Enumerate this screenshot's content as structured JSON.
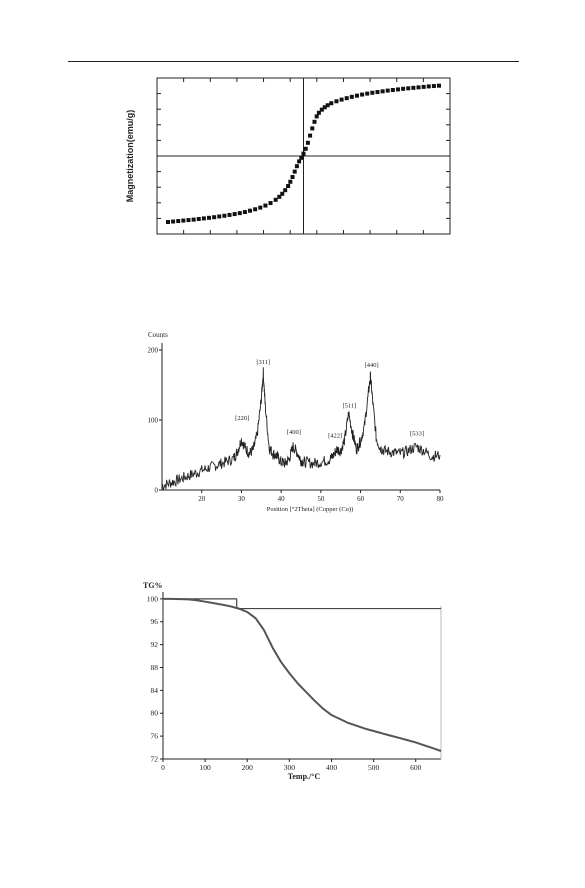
{
  "chart_data": [
    {
      "type": "scatter",
      "ylabel": "Magnetization(emu/g)",
      "xlabel": "",
      "xlim": [
        -20,
        20
      ],
      "ylim": [
        -65,
        65
      ],
      "grid": false,
      "series": [
        {
          "x": [
            -18.5,
            -17.8,
            -17.1,
            -16.4,
            -15.7,
            -15.0,
            -14.3,
            -13.6,
            -12.9,
            -12.2,
            -11.5,
            -10.8,
            -10.1,
            -9.4,
            -8.7,
            -8.0,
            -7.3,
            -6.6,
            -5.9,
            -5.2,
            -4.5,
            -3.8,
            -3.3,
            -2.9,
            -2.5,
            -2.1,
            -1.8,
            -1.5,
            -1.2,
            -0.9,
            -0.6,
            -0.3,
            0.0,
            0.3,
            0.6,
            0.9,
            1.2,
            1.5,
            1.8,
            2.1,
            2.5,
            2.9,
            3.3,
            3.8,
            4.5,
            5.2,
            5.9,
            6.6,
            7.3,
            8.0,
            8.7,
            9.4,
            10.1,
            10.8,
            11.5,
            12.2,
            12.9,
            13.6,
            14.3,
            15.0,
            15.7,
            16.4,
            17.1,
            17.8,
            18.5
          ],
          "y": [
            -55,
            -54.6,
            -54.2,
            -53.8,
            -53.4,
            -53.0,
            -52.5,
            -52.0,
            -51.5,
            -51.0,
            -50.4,
            -49.8,
            -49.1,
            -48.4,
            -47.6,
            -46.7,
            -45.6,
            -44.4,
            -43.0,
            -41.3,
            -39.2,
            -36.5,
            -34.0,
            -31.5,
            -28.5,
            -25.0,
            -21.5,
            -17.5,
            -13.0,
            -8.5,
            -4.5,
            -1.5,
            2.0,
            6.0,
            11.0,
            17.0,
            23.0,
            28.5,
            33.0,
            36.0,
            38.6,
            40.6,
            42.3,
            44.0,
            45.6,
            47.0,
            48.2,
            49.3,
            50.3,
            51.2,
            52.0,
            52.7,
            53.3,
            53.9,
            54.5,
            55.0,
            55.5,
            56.0,
            56.4,
            56.8,
            57.2,
            57.6,
            58.0,
            58.3,
            58.6
          ]
        }
      ]
    },
    {
      "type": "line",
      "title": "Counts",
      "xlabel": "Position [°2Theta] (Copper (Cu))",
      "ylabel": "",
      "xlim": [
        10,
        80
      ],
      "ylim": [
        0,
        210
      ],
      "xticks": [
        "20",
        "30",
        "40",
        "50",
        "60",
        "70",
        "80"
      ],
      "yticks": [
        "0",
        "100",
        "200"
      ],
      "peaks": [
        {
          "label": "[220]",
          "x": 30.2
        },
        {
          "label": "[311]",
          "x": 35.5
        },
        {
          "label": "[400]",
          "x": 43.2
        },
        {
          "label": "[422]",
          "x": 53.6
        },
        {
          "label": "[511]",
          "x": 57.2
        },
        {
          "label": "[440]",
          "x": 62.8
        },
        {
          "label": "[533]",
          "x": 74.2
        }
      ],
      "series": [
        {
          "x": [
            10,
            12,
            14,
            16,
            18,
            20,
            22,
            24,
            26,
            28,
            29,
            30,
            31,
            32,
            33,
            34,
            35,
            35.5,
            36,
            37,
            38,
            39,
            40,
            41,
            42,
            43,
            44,
            45,
            46,
            48,
            50,
            52,
            53,
            54,
            55,
            56,
            57,
            58,
            59,
            60,
            61,
            62,
            62.5,
            63,
            64,
            65,
            66,
            68,
            70,
            72,
            74,
            76,
            78,
            80
          ],
          "y": [
            6,
            10,
            14,
            19,
            23,
            28,
            32,
            36,
            40,
            45,
            55,
            72,
            60,
            52,
            58,
            80,
            130,
            168,
            120,
            60,
            52,
            48,
            40,
            38,
            44,
            62,
            54,
            42,
            40,
            38,
            40,
            43,
            48,
            58,
            56,
            72,
            110,
            80,
            58,
            70,
            92,
            140,
            162,
            130,
            72,
            60,
            56,
            54,
            52,
            56,
            62,
            56,
            48,
            50
          ]
        }
      ]
    },
    {
      "type": "line",
      "title": "TG%",
      "xlabel": "Temp./°C",
      "ylabel": "",
      "xlim": [
        0,
        660
      ],
      "ylim": [
        72,
        100.5
      ],
      "xticks": [
        "0",
        "100",
        "200",
        "300",
        "400",
        "500",
        "600"
      ],
      "yticks": [
        "100",
        "96",
        "92",
        "88",
        "84",
        "80",
        "76",
        "72"
      ],
      "series": [
        {
          "x": [
            0,
            20,
            40,
            60,
            80,
            100,
            120,
            140,
            160,
            180,
            200,
            220,
            240,
            260,
            280,
            300,
            320,
            340,
            360,
            380,
            400,
            420,
            440,
            460,
            480,
            500,
            520,
            540,
            560,
            580,
            600,
            620,
            640,
            660
          ],
          "y": [
            100,
            100,
            99.95,
            99.9,
            99.75,
            99.5,
            99.25,
            99.0,
            98.7,
            98.3,
            97.7,
            96.6,
            94.5,
            91.5,
            89.0,
            87.0,
            85.2,
            83.7,
            82.2,
            80.8,
            79.7,
            79.0,
            78.3,
            77.8,
            77.3,
            76.9,
            76.5,
            76.1,
            75.7,
            75.3,
            74.9,
            74.4,
            73.9,
            73.4
          ]
        }
      ],
      "reference_lines": [
        {
          "x": [
            0,
            175
          ],
          "y": [
            100,
            100
          ]
        },
        {
          "x": [
            175,
            175
          ],
          "y": [
            100,
            98.3
          ]
        },
        {
          "x": [
            175,
            660
          ],
          "y": [
            98.3,
            98.3
          ]
        }
      ]
    }
  ]
}
